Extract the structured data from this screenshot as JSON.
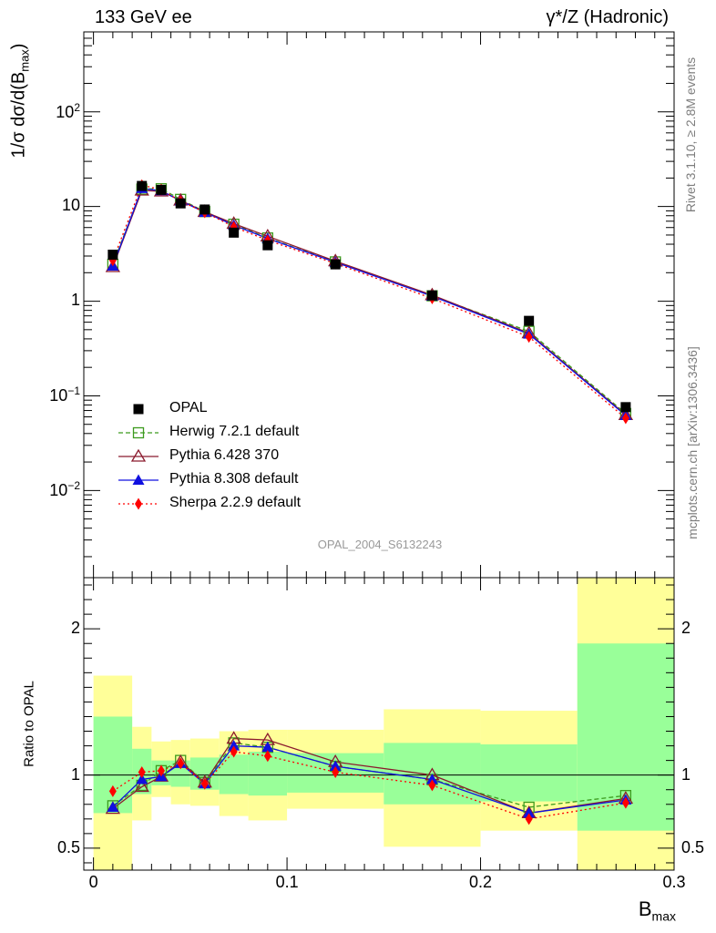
{
  "header": {
    "left": "133 GeV ee",
    "right": "γ*/Z (Hadronic)"
  },
  "side": {
    "rivet": "Rivet 3.1.10, ≥ 2.8M events",
    "mcplots": "mcplots.cern.ch [arXiv:1306.3436]"
  },
  "analysis_label": "OPAL_2004_S6132243",
  "axes": {
    "ylabel_top": "1/σ dσ/d(B",
    "ylabel_top_sub": "max",
    "ylabel_top_close": ")",
    "ylabel_bottom": "Ratio to OPAL",
    "xlabel": "B",
    "xlabel_sub": "max"
  },
  "ticks": {
    "x": [
      "0",
      "0.1",
      "0.2",
      "0.3"
    ],
    "x_values": [
      0,
      0.1,
      0.2,
      0.3
    ],
    "y_top": [
      {
        "base": "10",
        "exp": "−2",
        "value": 0.01
      },
      {
        "base": "10",
        "exp": "−1",
        "value": 0.1
      },
      {
        "base": "1",
        "exp": "",
        "value": 1
      },
      {
        "base": "10",
        "exp": "",
        "value": 10
      },
      {
        "base": "10",
        "exp": "2",
        "value": 100
      }
    ],
    "y_bottom": [
      {
        "label": "0.5",
        "value": 0.5
      },
      {
        "label": "1",
        "value": 1
      },
      {
        "label": "2",
        "value": 2
      }
    ]
  },
  "colors": {
    "data": "#000000",
    "herwig": "#3c9b1e",
    "pythia6": "#8b1a2e",
    "pythia8": "#1010e0",
    "sherpa": "#ff0000",
    "band_green": "#99ff99",
    "band_yellow": "#ffff99"
  },
  "chart_data": {
    "type": "line",
    "x_range": [
      -0.005,
      0.3
    ],
    "y_range_top_log": [
      0.0012,
      700
    ],
    "y_range_bottom": [
      0.35,
      2.35
    ],
    "bins": [
      [
        0.0,
        0.02
      ],
      [
        0.02,
        0.03
      ],
      [
        0.03,
        0.04
      ],
      [
        0.04,
        0.05
      ],
      [
        0.05,
        0.065
      ],
      [
        0.065,
        0.08
      ],
      [
        0.08,
        0.1
      ],
      [
        0.1,
        0.15
      ],
      [
        0.15,
        0.2
      ],
      [
        0.2,
        0.25
      ],
      [
        0.25,
        0.3
      ]
    ],
    "x": [
      0.01,
      0.025,
      0.035,
      0.045,
      0.0575,
      0.0725,
      0.09,
      0.125,
      0.175,
      0.225,
      0.275
    ],
    "data": {
      "name": "OPAL",
      "values": [
        3.1,
        16.5,
        15.0,
        10.8,
        9.3,
        5.3,
        3.9,
        2.45,
        1.15,
        0.62,
        0.076
      ]
    },
    "band_inner": [
      [
        0.74,
        1.4
      ],
      [
        0.87,
        1.18
      ],
      [
        0.93,
        1.1
      ],
      [
        0.92,
        1.1
      ],
      [
        0.9,
        1.12
      ],
      [
        0.87,
        1.14
      ],
      [
        0.86,
        1.16
      ],
      [
        0.88,
        1.15
      ],
      [
        0.8,
        1.22
      ],
      [
        0.82,
        1.21
      ],
      [
        0.62,
        1.9
      ]
    ],
    "band_outer": [
      [
        0.35,
        1.68
      ],
      [
        0.69,
        1.33
      ],
      [
        0.85,
        1.23
      ],
      [
        0.8,
        1.24
      ],
      [
        0.79,
        1.25
      ],
      [
        0.72,
        1.3
      ],
      [
        0.69,
        1.31
      ],
      [
        0.77,
        1.31
      ],
      [
        0.51,
        1.45
      ],
      [
        0.62,
        1.44
      ],
      [
        0.35,
        2.35
      ]
    ],
    "series": [
      {
        "name": "Herwig 7.2.1 default",
        "key": "herwig",
        "marker": "open-square",
        "dash": "5,3",
        "values": [
          2.45,
          15.3,
          15.4,
          11.9,
          8.85,
          6.5,
          4.65,
          2.6,
          1.14,
          0.48,
          0.065
        ],
        "ratio": [
          0.79,
          0.93,
          1.03,
          1.1,
          0.95,
          1.22,
          1.19,
          1.06,
          0.97,
          0.78,
          0.86
        ]
      },
      {
        "name": "Pythia 6.428 370",
        "key": "pythia6",
        "marker": "open-triangle",
        "dash": "",
        "values": [
          2.3,
          14.8,
          14.5,
          11.6,
          8.8,
          6.6,
          4.85,
          2.65,
          1.16,
          0.46,
          0.063
        ],
        "ratio": [
          0.77,
          0.92,
          0.99,
          1.09,
          0.95,
          1.25,
          1.24,
          1.09,
          1.0,
          0.74,
          0.84
        ]
      },
      {
        "name": "Pythia 8.308 default",
        "key": "pythia8",
        "marker": "filled-triangle",
        "dash": "",
        "values": [
          2.35,
          15.5,
          14.7,
          11.5,
          8.7,
          6.35,
          4.6,
          2.58,
          1.13,
          0.45,
          0.062
        ],
        "ratio": [
          0.78,
          0.97,
          0.99,
          1.08,
          0.94,
          1.2,
          1.19,
          1.06,
          0.97,
          0.74,
          0.83
        ]
      },
      {
        "name": "Sherpa 2.2.9 default",
        "key": "sherpa",
        "marker": "filled-diamond",
        "dash": "2,3",
        "values": [
          2.7,
          16.8,
          15.1,
          11.4,
          8.7,
          6.1,
          4.4,
          2.5,
          1.07,
          0.42,
          0.058
        ],
        "ratio": [
          0.89,
          1.02,
          1.03,
          1.08,
          0.94,
          1.16,
          1.13,
          1.02,
          0.93,
          0.7,
          0.81
        ]
      }
    ]
  }
}
